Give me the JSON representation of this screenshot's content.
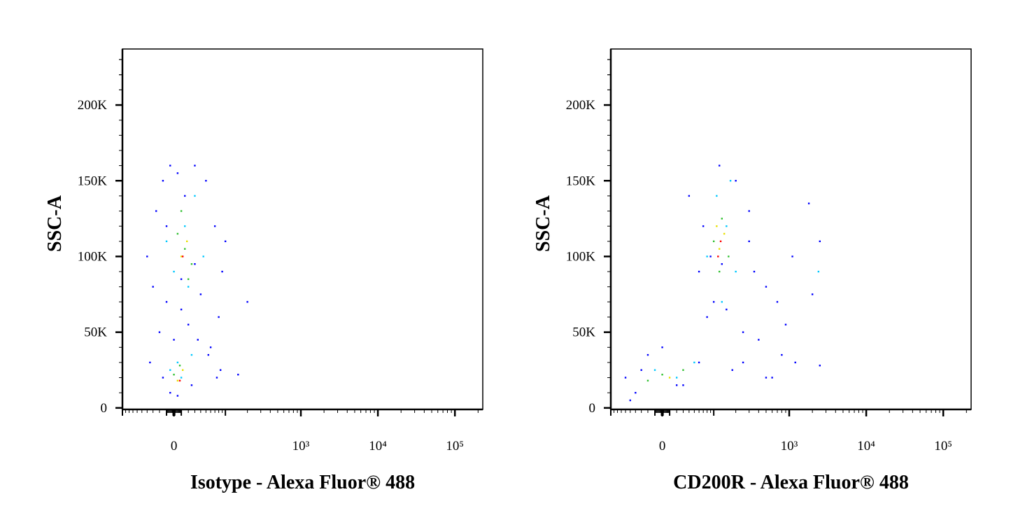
{
  "chart_data": [
    {
      "type": "scatter",
      "x_label": "Isotype - Alexa Fluor® 488",
      "y_label": "SSC-A",
      "xscale": "biexponential",
      "xlim": [
        -100,
        230000
      ],
      "ylim": [
        -1000,
        237000
      ],
      "xticks": [
        {
          "value": 0,
          "label": "0"
        },
        {
          "value": 1000,
          "label": "10³"
        },
        {
          "value": 10000,
          "label": "10⁴"
        },
        {
          "value": 100000,
          "label": "10⁵"
        }
      ],
      "yticks": [
        {
          "value": 0,
          "label": "0"
        },
        {
          "value": 50000,
          "label": "50K"
        },
        {
          "value": 100000,
          "label": "100K"
        },
        {
          "value": 150000,
          "label": "150K"
        },
        {
          "value": 200000,
          "label": "200K"
        }
      ],
      "series": [
        {
          "color": "#0000ff",
          "x": [
            -40,
            -25,
            -15,
            -5,
            5,
            15,
            30,
            50,
            70,
            90,
            -30,
            -10,
            10,
            40,
            80,
            100,
            -20,
            0,
            20,
            60,
            -35,
            -5,
            25,
            55,
            85,
            -15,
            5,
            35,
            75,
            200,
            150,
            -10,
            10,
            30
          ],
          "values": [
            100000,
            130000,
            150000,
            160000,
            155000,
            140000,
            160000,
            150000,
            120000,
            90000,
            80000,
            70000,
            65000,
            75000,
            60000,
            110000,
            50000,
            45000,
            55000,
            40000,
            30000,
            10000,
            15000,
            35000,
            25000,
            20000,
            8000,
            45000,
            20000,
            70000,
            22000,
            120000,
            85000,
            95000
          ]
        },
        {
          "color": "#00c8ff",
          "x": [
            0,
            15,
            30,
            -10,
            45,
            20,
            5,
            -5,
            10,
            25
          ],
          "values": [
            90000,
            120000,
            140000,
            110000,
            100000,
            80000,
            30000,
            25000,
            20000,
            35000
          ]
        },
        {
          "color": "#30c030",
          "x": [
            5,
            15,
            25,
            10,
            20,
            0,
            8
          ],
          "values": [
            115000,
            105000,
            95000,
            130000,
            85000,
            22000,
            28000
          ]
        },
        {
          "color": "#e8e000",
          "x": [
            10,
            18,
            5,
            12
          ],
          "values": [
            100000,
            110000,
            18000,
            25000
          ]
        },
        {
          "color": "#ff0000",
          "x": [
            12,
            8
          ],
          "values": [
            100000,
            18000
          ]
        }
      ]
    },
    {
      "type": "scatter",
      "x_label": "CD200R - Alexa Fluor® 488",
      "y_label": "SSC-A",
      "xscale": "biexponential",
      "xlim": [
        -100,
        230000
      ],
      "ylim": [
        -1000,
        237000
      ],
      "xticks": [
        {
          "value": 0,
          "label": "0"
        },
        {
          "value": 1000,
          "label": "10³"
        },
        {
          "value": 10000,
          "label": "10⁴"
        },
        {
          "value": 100000,
          "label": "10⁵"
        }
      ],
      "yticks": [
        {
          "value": 0,
          "label": "0"
        },
        {
          "value": 50000,
          "label": "50K"
        },
        {
          "value": 100000,
          "label": "100K"
        },
        {
          "value": 150000,
          "label": "150K"
        },
        {
          "value": 200000,
          "label": "200K"
        }
      ],
      "series": [
        {
          "color": "#0000ff",
          "x": [
            -60,
            -40,
            -20,
            0,
            20,
            60,
            80,
            120,
            200,
            300,
            350,
            500,
            700,
            900,
            1200,
            2000,
            2500,
            2500,
            60,
            100,
            150,
            250,
            400,
            600,
            800,
            40,
            70,
            -50,
            -30,
            30,
            90,
            130,
            1800,
            1100,
            500,
            250,
            180,
            300
          ],
          "values": [
            20000,
            10000,
            35000,
            40000,
            15000,
            30000,
            60000,
            160000,
            150000,
            130000,
            90000,
            80000,
            70000,
            55000,
            30000,
            75000,
            28000,
            110000,
            90000,
            70000,
            65000,
            50000,
            45000,
            20000,
            35000,
            140000,
            120000,
            5000,
            25000,
            15000,
            100000,
            95000,
            135000,
            100000,
            20000,
            30000,
            25000,
            110000
          ]
        },
        {
          "color": "#00c8ff",
          "x": [
            80,
            110,
            150,
            200,
            -10,
            20,
            50,
            130,
            170,
            2400
          ],
          "values": [
            100000,
            140000,
            120000,
            90000,
            25000,
            20000,
            30000,
            70000,
            150000,
            90000
          ]
        },
        {
          "color": "#30c030",
          "x": [
            100,
            130,
            160,
            120,
            0,
            30,
            -20
          ],
          "values": [
            110000,
            125000,
            100000,
            90000,
            22000,
            25000,
            18000
          ]
        },
        {
          "color": "#e8e000",
          "x": [
            120,
            140,
            110,
            10
          ],
          "values": [
            105000,
            115000,
            120000,
            20000
          ]
        },
        {
          "color": "#ff0000",
          "x": [
            125,
            115
          ],
          "values": [
            110000,
            100000
          ]
        }
      ]
    }
  ]
}
